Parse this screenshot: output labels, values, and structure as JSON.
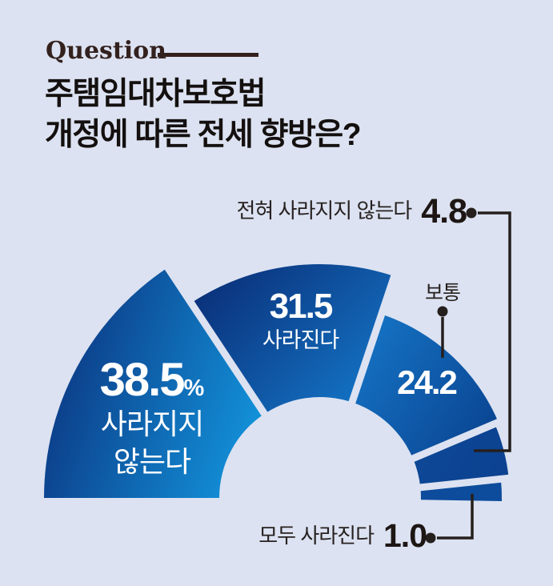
{
  "page": {
    "background_color": "#dce2f1",
    "accent_dark_text": "#33211e"
  },
  "header": {
    "eyebrow": "Question",
    "title_line1": "주탬임대차보호법",
    "title_line2": "개정에 따른 전세 향방은?"
  },
  "chart_data": {
    "type": "pie",
    "subtype": "half_donut_gauge",
    "title": "주탬임대차보호법 개정에 따른 전세 향방은?",
    "unit": "%",
    "legend_position": "none",
    "categories": [
      "사라지지 않는다",
      "사라진다",
      "보통",
      "전혀 사라지지 않는다",
      "모두 사라진다"
    ],
    "values": [
      38.5,
      31.5,
      24.2,
      4.8,
      1.0
    ],
    "segments": [
      {
        "label": "사라지지 않는다",
        "value": 38.5,
        "value_display": "38.5",
        "unit_display": "%",
        "label_line1": "사라지지",
        "label_line2": "않는다",
        "color_from": "#0c3a86",
        "color_to": "#1290d8"
      },
      {
        "label": "사라진다",
        "value": 31.5,
        "value_display": "31.5",
        "color_from": "#0a2d76",
        "color_to": "#1478ca"
      },
      {
        "label": "보통",
        "value": 24.2,
        "value_display": "24.2",
        "color_from": "#1571c2",
        "color_to": "#094390"
      },
      {
        "label": "전혀 사라지지 않는다",
        "value": 4.8,
        "value_display": "4.8",
        "color_from": "#0d4896",
        "color_to": "#0c4190"
      },
      {
        "label": "모두 사라진다",
        "value": 1.0,
        "value_display": "1.0",
        "color_from": "#0d4c9c",
        "color_to": "#0d4c9c"
      }
    ],
    "callouts": {
      "top": {
        "text": "전혀 사라지지 않는다",
        "value": "4.8"
      },
      "mid": {
        "text": "보통"
      },
      "bottom": {
        "text": "모두 사라진다",
        "value": "1.0"
      }
    },
    "callout_line_color": "#251f1d",
    "label_text_color": "#ffffff"
  }
}
